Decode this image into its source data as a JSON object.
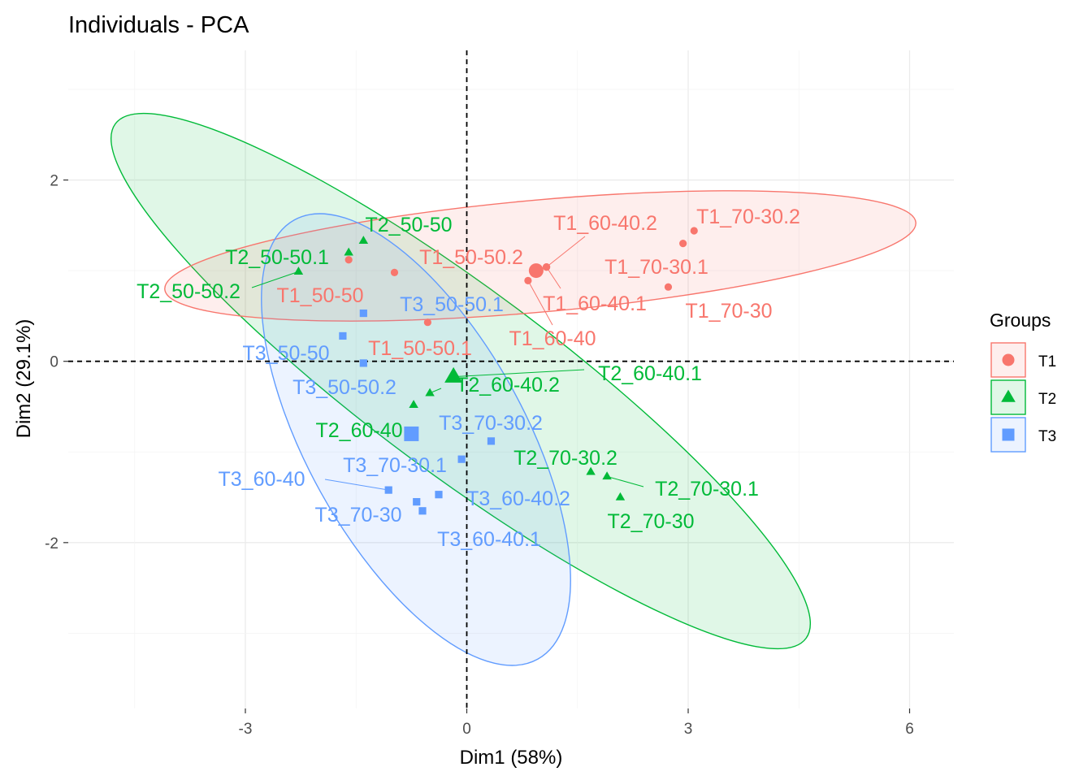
{
  "chart_data": {
    "type": "scatter",
    "title": "Individuals - PCA",
    "xlabel": "Dim1 (58%)",
    "ylabel": "Dim2 (29.1%)",
    "xlim": [
      -5.4,
      6.6
    ],
    "ylim": [
      -3.83,
      3.43
    ],
    "xticks": [
      -3,
      0,
      3,
      6
    ],
    "xtick_labels": [
      "-3",
      "0",
      "3",
      "6"
    ],
    "yticks": [
      -2,
      0,
      2
    ],
    "ytick_labels": [
      "-2",
      "0",
      "2"
    ],
    "grid": true,
    "legend_title": "Groups",
    "legend_position": "right",
    "series": [
      {
        "name": "T1",
        "color": "#F8766D",
        "marker": "circle",
        "centroid": [
          0.94,
          1.0
        ],
        "points": [
          {
            "label": "T1_50-50",
            "x": -1.6,
            "y": 1.12
          },
          {
            "label": "T1_50-50.1",
            "x": -0.53,
            "y": 0.43
          },
          {
            "label": "T1_50-50.2",
            "x": -0.98,
            "y": 0.98
          },
          {
            "label": "T1_60-40",
            "x": 0.83,
            "y": 0.89
          },
          {
            "label": "T1_60-40.1",
            "x": 1.08,
            "y": 1.04
          },
          {
            "label": "T1_60-40.2",
            "x": 1.08,
            "y": 1.04
          },
          {
            "label": "T1_70-30",
            "x": 2.73,
            "y": 0.82
          },
          {
            "label": "T1_70-30.1",
            "x": 2.93,
            "y": 1.3
          },
          {
            "label": "T1_70-30.2",
            "x": 3.08,
            "y": 1.44
          }
        ]
      },
      {
        "name": "T2",
        "color": "#00BA38",
        "marker": "triangle",
        "centroid": [
          -0.18,
          -0.17
        ],
        "points": [
          {
            "label": "T2_50-50",
            "x": -1.4,
            "y": 1.33
          },
          {
            "label": "T2_50-50.1",
            "x": -1.6,
            "y": 1.2
          },
          {
            "label": "T2_50-50.2",
            "x": -2.28,
            "y": 0.99
          },
          {
            "label": "T2_60-40",
            "x": -0.72,
            "y": -0.48
          },
          {
            "label": "T2_60-40.1",
            "x": -0.18,
            "y": -0.17
          },
          {
            "label": "T2_60-40.2",
            "x": -0.5,
            "y": -0.35
          },
          {
            "label": "T2_70-30",
            "x": 2.08,
            "y": -1.5
          },
          {
            "label": "T2_70-30.1",
            "x": 1.9,
            "y": -1.27
          },
          {
            "label": "T2_70-30.2",
            "x": 1.68,
            "y": -1.22
          }
        ]
      },
      {
        "name": "T3",
        "color": "#619CFF",
        "marker": "square",
        "centroid": [
          -0.75,
          -0.8
        ],
        "points": [
          {
            "label": "T3_50-50",
            "x": -1.68,
            "y": 0.28
          },
          {
            "label": "T3_50-50.1",
            "x": -1.4,
            "y": 0.53
          },
          {
            "label": "T3_50-50.2",
            "x": -1.4,
            "y": -0.02
          },
          {
            "label": "T3_60-40",
            "x": -1.06,
            "y": -1.42
          },
          {
            "label": "T3_60-40.1",
            "x": -0.6,
            "y": -1.65
          },
          {
            "label": "T3_60-40.2",
            "x": -0.38,
            "y": -1.47
          },
          {
            "label": "T3_70-30",
            "x": -0.68,
            "y": -1.55
          },
          {
            "label": "T3_70-30.1",
            "x": -0.07,
            "y": -1.08
          },
          {
            "label": "T3_70-30.2",
            "x": 0.33,
            "y": -0.88
          }
        ]
      }
    ]
  }
}
